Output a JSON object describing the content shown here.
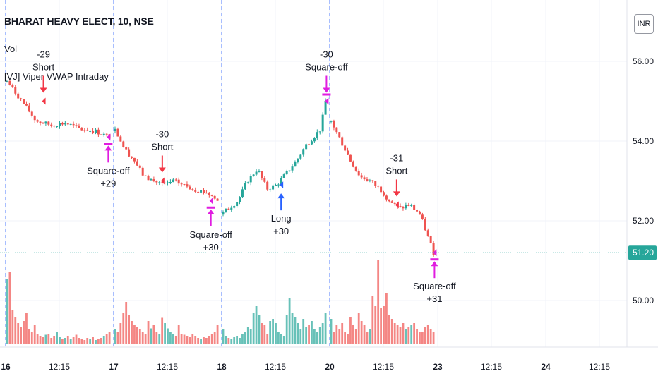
{
  "header": {
    "symbol_title": "BHARAT HEAVY ELECT, 10, NSE",
    "volume_label": "Vol",
    "indicator_label": "[VJ] Viper VWAP Intraday",
    "currency": "INR"
  },
  "colors": {
    "up": "#26a69a",
    "down": "#ef5350",
    "short_arrow": "#f23645",
    "long_arrow": "#2962ff",
    "squareoff_arrow": "#e01de0",
    "session_line": "#2962ff",
    "last_price_bg": "#26a69a"
  },
  "chart_data": {
    "type": "candlestick",
    "x_labels": [
      "16",
      "12:15",
      "17",
      "12:15",
      "18",
      "12:15",
      "20",
      "12:15",
      "23",
      "12:15",
      "24",
      "12:15"
    ],
    "y_ticks": [
      "56.00",
      "54.00",
      "52.00",
      "50.00"
    ],
    "ylim": [
      49.2,
      57.2
    ],
    "last_price": "51.20",
    "days": [
      {
        "label": "16",
        "points": [
          [
            0,
            55.5
          ],
          [
            3,
            55.0
          ],
          [
            6,
            54.5
          ],
          [
            9,
            54.4
          ],
          [
            12,
            54.45
          ],
          [
            15,
            54.3
          ],
          [
            18,
            54.25
          ],
          [
            21,
            54.1
          ]
        ]
      },
      {
        "label": "17",
        "points": [
          [
            0,
            54.3
          ],
          [
            2,
            53.8
          ],
          [
            4,
            53.5
          ],
          [
            6,
            53.1
          ],
          [
            8,
            53.0
          ],
          [
            10,
            52.9
          ],
          [
            12,
            53.0
          ],
          [
            14,
            52.9
          ],
          [
            16,
            52.8
          ],
          [
            19,
            52.7
          ],
          [
            21,
            52.5
          ]
        ]
      },
      {
        "label": "18",
        "points": [
          [
            0,
            52.2
          ],
          [
            3,
            52.5
          ],
          [
            5,
            53.0
          ],
          [
            7,
            53.3
          ],
          [
            9,
            52.8
          ],
          [
            11,
            52.9
          ],
          [
            13,
            53.2
          ],
          [
            15,
            53.5
          ],
          [
            17,
            53.9
          ],
          [
            20,
            54.3
          ],
          [
            21,
            55.0
          ]
        ]
      },
      {
        "label": "20",
        "points": [
          [
            0,
            54.5
          ],
          [
            2,
            54.0
          ],
          [
            4,
            53.5
          ],
          [
            6,
            53.1
          ],
          [
            8,
            53.0
          ],
          [
            10,
            52.8
          ],
          [
            12,
            52.5
          ],
          [
            14,
            52.3
          ],
          [
            16,
            52.4
          ],
          [
            18,
            52.2
          ],
          [
            19,
            51.9
          ],
          [
            21,
            51.2
          ]
        ]
      }
    ],
    "volumes": [
      0.62,
      0.68,
      0.32,
      0.26,
      0.2,
      0.16,
      0.22,
      0.3,
      0.14,
      0.12,
      0.18,
      0.1,
      0.08,
      0.07,
      0.09,
      0.1,
      0.06,
      0.08,
      0.12,
      0.07,
      0.05,
      0.06,
      0.08,
      0.05,
      0.07,
      0.09,
      0.06,
      0.05,
      0.04,
      0.06,
      0.05,
      0.07,
      0.04,
      0.05,
      0.06,
      0.08,
      0.1,
      0.12,
      0.14,
      0.12,
      0.2,
      0.3,
      0.4,
      0.28,
      0.22,
      0.18,
      0.16,
      0.14,
      0.12,
      0.1,
      0.22,
      0.15,
      0.18,
      0.12,
      0.1,
      0.25,
      0.2,
      0.15,
      0.12,
      0.1,
      0.08,
      0.18,
      0.1,
      0.09,
      0.08,
      0.07,
      0.1,
      0.08,
      0.06,
      0.05,
      0.07,
      0.06,
      0.08,
      0.1,
      0.12,
      0.18,
      0.14,
      0.08,
      0.06,
      0.05,
      0.07,
      0.08,
      0.06,
      0.1,
      0.12,
      0.16,
      0.14,
      0.3,
      0.36,
      0.28,
      0.2,
      0.18,
      0.1,
      0.22,
      0.24,
      0.2,
      0.12,
      0.1,
      0.08,
      0.28,
      0.44,
      0.3,
      0.26,
      0.2,
      0.14,
      0.24,
      0.16,
      0.18,
      0.22,
      0.14,
      0.12,
      0.16,
      0.2,
      0.3,
      0.24,
      0.12,
      0.18,
      0.14,
      0.2,
      0.12,
      0.1,
      0.26,
      0.18,
      0.14,
      0.3,
      0.22,
      0.18,
      0.12,
      0.14,
      0.46,
      0.36,
      0.8,
      0.34,
      0.36,
      0.48,
      0.28,
      0.24,
      0.2,
      0.18,
      0.16,
      0.2,
      0.14,
      0.16,
      0.18,
      0.2,
      0.14,
      0.12,
      0.12,
      0.16,
      0.18,
      0.14,
      0.12,
      0.1,
      0.14,
      0.12,
      0.08,
      0.1,
      0.08,
      0.12,
      0.1,
      0.09,
      0.12,
      0.1,
      0.08,
      0.14,
      0.12,
      0.1,
      0.16,
      0.14,
      0.18,
      0.22,
      0.3,
      0.34,
      0.4,
      0.16
    ],
    "signals": [
      {
        "kind": "short",
        "pos": "above",
        "x": 0.35,
        "y": 55.0,
        "qty": "-29",
        "label": "Short"
      },
      {
        "kind": "squareoff",
        "pos": "below",
        "x": 0.95,
        "y": 54.1,
        "qty": "+29",
        "label": "Square-off"
      },
      {
        "kind": "short",
        "pos": "above",
        "x": 1.45,
        "y": 53.0,
        "qty": "-30",
        "label": "Short"
      },
      {
        "kind": "squareoff",
        "pos": "below",
        "x": 1.9,
        "y": 52.5,
        "qty": "+30",
        "label": "Square-off"
      },
      {
        "kind": "long",
        "pos": "below",
        "x": 2.55,
        "y": 52.9,
        "qty": "+30",
        "label": "Long"
      },
      {
        "kind": "squareoff",
        "pos": "above",
        "x": 2.97,
        "y": 55.0,
        "qty": "-30",
        "label": "Square-off"
      },
      {
        "kind": "short",
        "pos": "above",
        "x": 3.62,
        "y": 52.4,
        "qty": "-31",
        "label": "Short"
      },
      {
        "kind": "squareoff",
        "pos": "below",
        "x": 3.97,
        "y": 51.2,
        "qty": "+31",
        "label": "Square-off"
      }
    ]
  }
}
